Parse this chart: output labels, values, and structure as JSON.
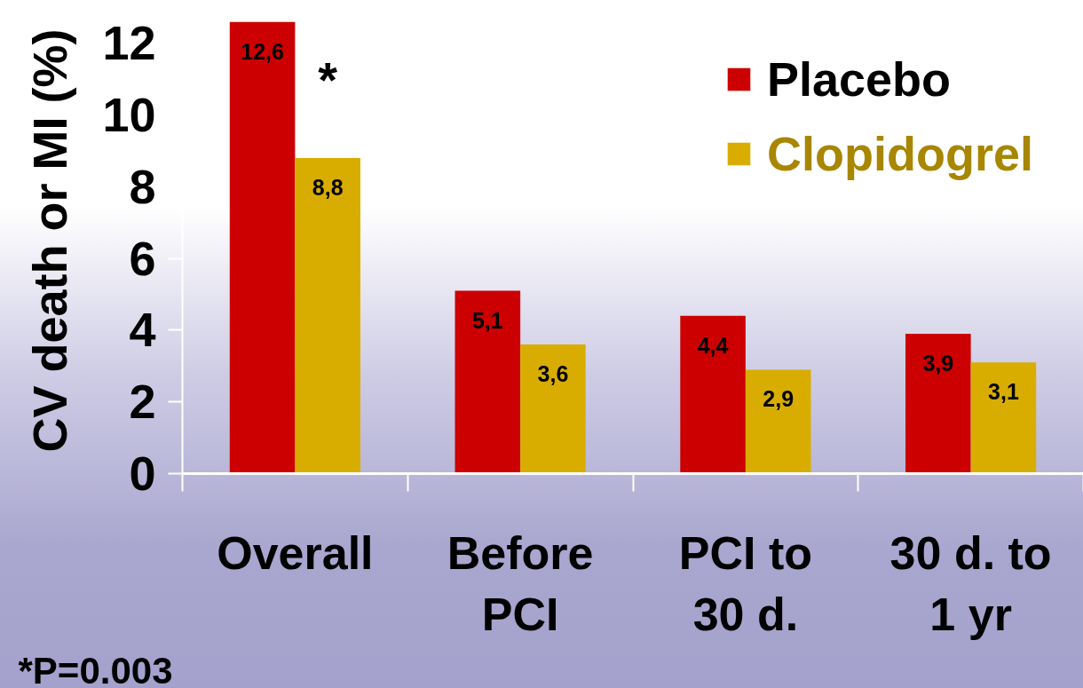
{
  "chart_data": {
    "type": "bar",
    "ylabel": "CV death or MI (%)",
    "categories": [
      "Overall",
      "Before\nPCI",
      "PCI to\n30 d.",
      "30 d. to\n1 yr"
    ],
    "series": [
      {
        "name": "Placebo",
        "color": "#cc0000",
        "values": [
          12.6,
          5.1,
          4.4,
          3.9
        ],
        "value_labels": [
          "12,6",
          "5,1",
          "4,4",
          "3,9"
        ]
      },
      {
        "name": "Clopidogrel",
        "color": "#d9ad00",
        "values": [
          8.8,
          3.6,
          2.9,
          3.1
        ],
        "value_labels": [
          "8,8",
          "3,6",
          "2,9",
          "3,1"
        ]
      }
    ],
    "ylim": [
      0,
      13
    ],
    "yticks": [
      0,
      2,
      4,
      6,
      8,
      10,
      12
    ],
    "legend": "top right",
    "annotations": [
      {
        "text": "*",
        "x": "Overall",
        "y": 11
      },
      "*P=0.003"
    ]
  }
}
